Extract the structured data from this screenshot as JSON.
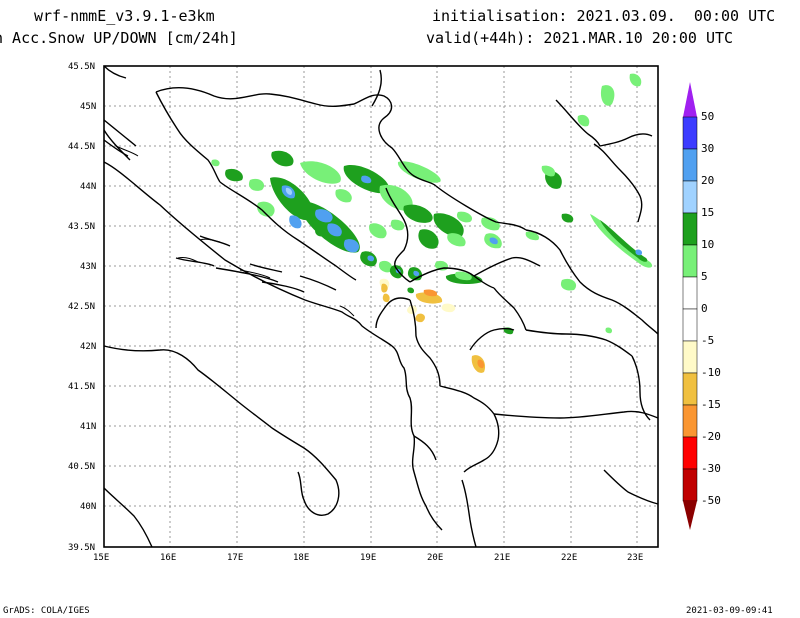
{
  "header": {
    "model": "wrf-nmmE_v3.9.1-e3km",
    "field": "n Acc.Snow UP/DOWN [cm/24h]",
    "init": "initialisation: 2021.03.09.  00:00 UTC",
    "valid": "valid(+44h): 2021.MAR.10 20:00 UTC"
  },
  "footer": {
    "left": "GrADS: COLA/IGES",
    "right": "2021-03-09-09:41"
  },
  "map": {
    "lon_labels": [
      "15E",
      "16E",
      "17E",
      "18E",
      "19E",
      "20E",
      "21E",
      "22E",
      "23E"
    ],
    "lat_labels": [
      "45.5N",
      "45N",
      "44.5N",
      "44N",
      "43.5N",
      "43N",
      "42.5N",
      "42N",
      "41.5N",
      "41N",
      "40.5N",
      "40N",
      "39.5N"
    ],
    "lon_range": [
      15,
      23.3
    ],
    "lat_range": [
      39.5,
      45.5
    ],
    "grid": true
  },
  "colorbar": {
    "labels": [
      "50",
      "30",
      "20",
      "15",
      "10",
      "5",
      "0",
      "-5",
      "-10",
      "-15",
      "-20",
      "-30",
      "-50"
    ],
    "colors": {
      "top_arrow": "#a020f0",
      "c30_50": "#3c3cff",
      "c20_30": "#50a0f0",
      "c15_20": "#a0d2ff",
      "c10_15": "#1ea01e",
      "c5_10": "#78f078",
      "c0_5": "#ffffff",
      "cm5_0": "#ffffff",
      "cm10_m5": "#fffac8",
      "cm15_m10": "#f0c040",
      "cm20_m15": "#fa9632",
      "cm30_m20": "#ff0000",
      "cm50_m30": "#c00000",
      "bottom_arrow": "#8b0000"
    }
  }
}
